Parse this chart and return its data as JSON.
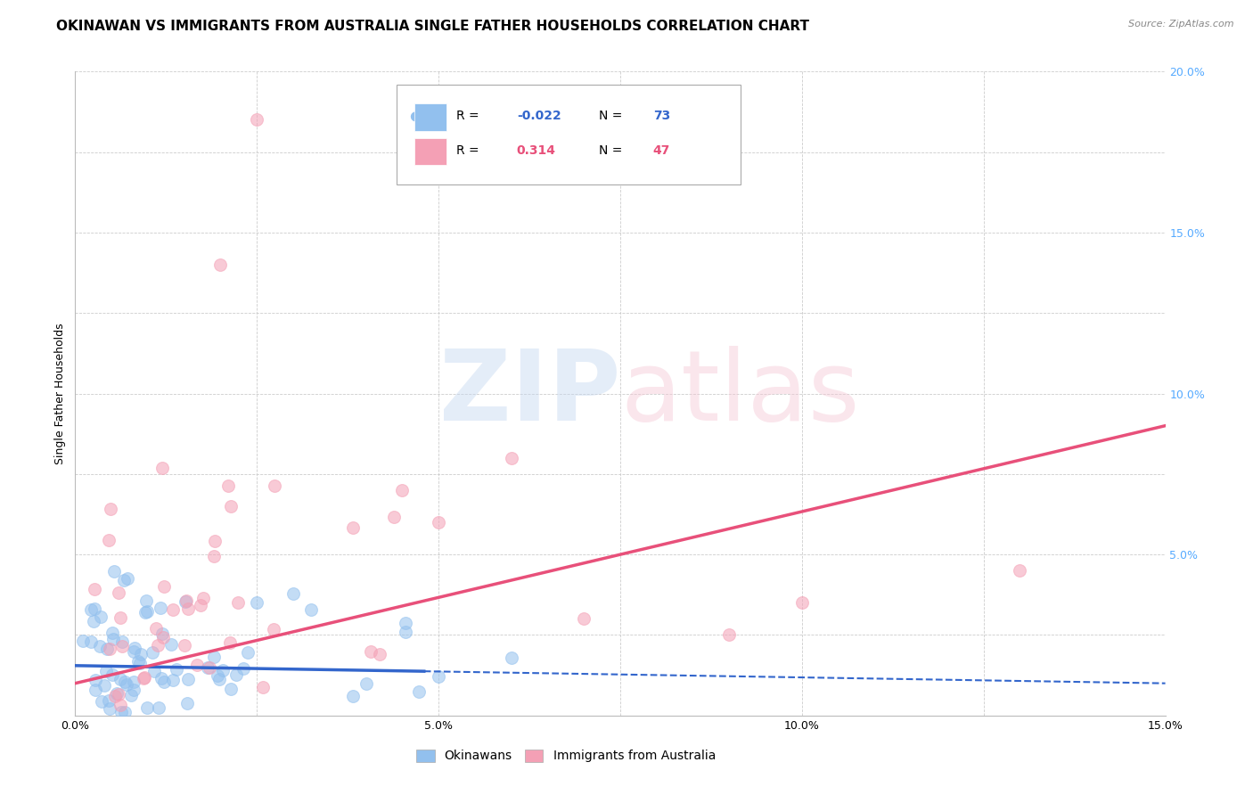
{
  "title": "OKINAWAN VS IMMIGRANTS FROM AUSTRALIA SINGLE FATHER HOUSEHOLDS CORRELATION CHART",
  "source": "Source: ZipAtlas.com",
  "ylabel": "Single Father Households",
  "xlim": [
    0.0,
    0.15
  ],
  "ylim": [
    0.0,
    0.2
  ],
  "xtick_vals": [
    0.0,
    0.025,
    0.05,
    0.075,
    0.1,
    0.125,
    0.15
  ],
  "xtick_labels": [
    "0.0%",
    "",
    "5.0%",
    "",
    "10.0%",
    "",
    "15.0%"
  ],
  "ytick_vals": [
    0.0,
    0.025,
    0.05,
    0.075,
    0.1,
    0.125,
    0.15,
    0.175,
    0.2
  ],
  "ytick_labels_right": [
    "",
    "",
    "5.0%",
    "",
    "10.0%",
    "",
    "15.0%",
    "",
    "20.0%"
  ],
  "r_blue": -0.022,
  "n_blue": 73,
  "r_pink": 0.314,
  "n_pink": 47,
  "blue_color": "#92C0EE",
  "pink_color": "#F4A0B5",
  "blue_line_color": "#3366CC",
  "pink_line_color": "#E8507A",
  "legend_label_blue": "Okinawans",
  "legend_label_pink": "Immigrants from Australia",
  "background_color": "#ffffff",
  "grid_color": "#CCCCCC",
  "title_fontsize": 11,
  "axis_label_fontsize": 9,
  "tick_fontsize": 9,
  "right_tick_color": "#55AAFF",
  "source_color": "#888888"
}
